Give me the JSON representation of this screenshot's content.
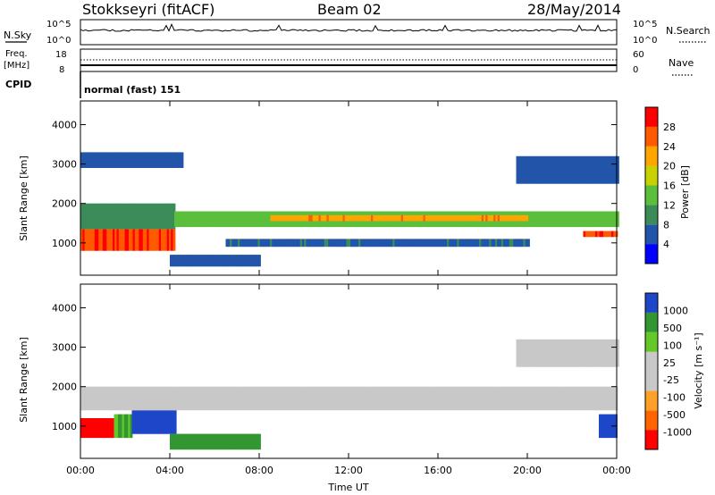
{
  "header": {
    "station": "Stokkseyri (fitACF)",
    "beam": "Beam 02",
    "date": "28/May/2014"
  },
  "top_panels": {
    "nsky_label": "N.Sky",
    "nsky_ticks": [
      "10^5",
      "10^0"
    ],
    "nsearch_label": "N.Search",
    "nsearch_ticks": [
      "10^5",
      "10^0"
    ],
    "freq_label": "Freq.",
    "freq_unit": "[MHz]",
    "freq_ticks": [
      "18",
      "8"
    ],
    "nave_label": "Nave",
    "nave_ticks": [
      "60",
      "0"
    ],
    "cpid_label": "CPID",
    "cpid_text": "normal (fast) 151"
  },
  "colors": {
    "power_scale": [
      "#0000ff",
      "#2255aa",
      "#3c8c5a",
      "#5bbf3c",
      "#c8d200",
      "#ffa500",
      "#ff5a00",
      "#ff0000"
    ],
    "velocity_scale": [
      "#ff0000",
      "#ff6400",
      "#ffa028",
      "#c8c8c8",
      "#c8c8c8",
      "#64c828",
      "#329632",
      "#1e46c8"
    ]
  },
  "chart_data": [
    {
      "type": "heatmap",
      "title": "",
      "xlabel": "Time UT",
      "ylabel": "Slant Range [km]",
      "x_ticks": [
        "00:00",
        "04:00",
        "08:00",
        "12:00",
        "16:00",
        "20:00",
        "00:00"
      ],
      "xlim_hours": [
        0,
        24
      ],
      "y_ticks": [
        "1000",
        "2000",
        "3000",
        "4000"
      ],
      "ylim": [
        180,
        4600
      ],
      "colorbar": {
        "label": "Power [dB]",
        "range": [
          0,
          30
        ],
        "ticks": [
          "4",
          "8",
          "12",
          "16",
          "20",
          "24",
          "28"
        ]
      },
      "regions": [
        {
          "t0": 0.0,
          "t1": 4.2,
          "r0": 800,
          "r1": 1350,
          "value_db": 26
        },
        {
          "t0": 0.0,
          "t1": 4.2,
          "r0": 1350,
          "r1": 2000,
          "value_db": 10
        },
        {
          "t0": 4.2,
          "t1": 24.0,
          "r0": 1400,
          "r1": 1800,
          "value_db": 13
        },
        {
          "t0": 8.5,
          "t1": 20.0,
          "r0": 1550,
          "r1": 1700,
          "value_db": 21
        },
        {
          "t0": 6.5,
          "t1": 20.0,
          "r0": 900,
          "r1": 1100,
          "value_db": 7
        },
        {
          "t0": 4.0,
          "t1": 8.0,
          "r0": 400,
          "r1": 700,
          "value_db": 6
        },
        {
          "t0": 0.0,
          "t1": 4.5,
          "r0": 2900,
          "r1": 3300,
          "value_db": 5
        },
        {
          "t0": 19.5,
          "t1": 24.0,
          "r0": 2500,
          "r1": 3200,
          "value_db": 5
        },
        {
          "t0": 22.5,
          "t1": 24.0,
          "r0": 1150,
          "r1": 1300,
          "value_db": 25
        }
      ]
    },
    {
      "type": "heatmap",
      "title": "",
      "xlabel": "Time UT",
      "ylabel": "Slant Range [km]",
      "x_ticks": [
        "00:00",
        "04:00",
        "08:00",
        "12:00",
        "16:00",
        "20:00",
        "00:00"
      ],
      "xlim_hours": [
        0,
        24
      ],
      "y_ticks": [
        "1000",
        "2000",
        "3000",
        "4000"
      ],
      "ylim": [
        180,
        4600
      ],
      "colorbar": {
        "label": "Velocity [m s⁻¹]",
        "range": [
          -1000,
          1000
        ],
        "ticks": [
          "1000",
          "500",
          "100",
          "25",
          "-25",
          "-100",
          "-500",
          "-1000"
        ]
      },
      "regions": [
        {
          "t0": 0.0,
          "t1": 1.5,
          "r0": 700,
          "r1": 1200,
          "value_ms": -700
        },
        {
          "t0": 1.5,
          "t1": 2.3,
          "r0": 700,
          "r1": 1300,
          "value_ms": 100
        },
        {
          "t0": 2.3,
          "t1": 4.2,
          "r0": 800,
          "r1": 1400,
          "value_ms": 800
        },
        {
          "t0": 0.0,
          "t1": 24.0,
          "r0": 1400,
          "r1": 2000,
          "value_ms": 0
        },
        {
          "t0": 4.0,
          "t1": 8.0,
          "r0": 400,
          "r1": 800,
          "value_ms": 150
        },
        {
          "t0": 19.5,
          "t1": 24.0,
          "r0": 2500,
          "r1": 3200,
          "value_ms": 0
        },
        {
          "t0": 23.2,
          "t1": 24.0,
          "r0": 700,
          "r1": 1300,
          "value_ms": 600
        }
      ]
    }
  ]
}
